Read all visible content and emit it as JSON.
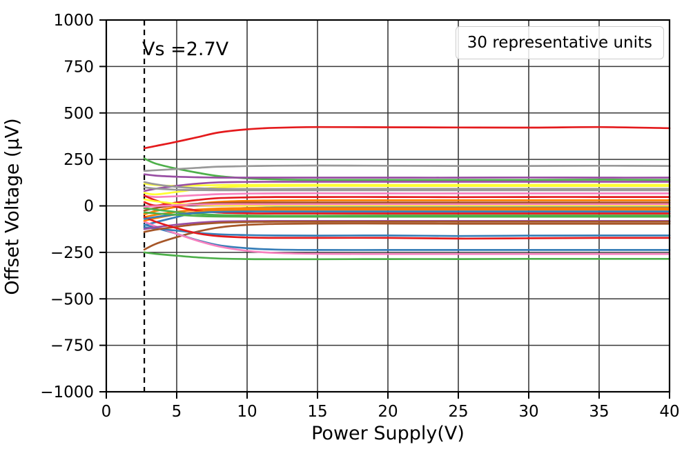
{
  "chart_data": {
    "type": "line",
    "title": "",
    "xlabel": "Power Supply(V)",
    "ylabel": "Offset Voltage (µV)",
    "xlim": [
      0,
      40
    ],
    "ylim": [
      -1000,
      1000
    ],
    "xticks": [
      0,
      5,
      10,
      15,
      20,
      25,
      30,
      35,
      40
    ],
    "yticks": [
      -1000,
      -750,
      -500,
      -250,
      0,
      250,
      500,
      750,
      1000
    ],
    "grid": true,
    "legend_text": "30 representative units",
    "annotation": {
      "text": "Vs =2.7V",
      "x": 2.8,
      "y": 880
    },
    "vline": {
      "x": 2.7,
      "style": "dashed",
      "color": "#000000"
    },
    "x": [
      2.7,
      3.5,
      5,
      6.5,
      8,
      10,
      12,
      15,
      20,
      25,
      30,
      35,
      40
    ],
    "series": [
      {
        "color": "#e41a1c",
        "y": [
          310,
          322,
          345,
          370,
          395,
          412,
          420,
          424,
          423,
          422,
          421,
          424,
          418
        ]
      },
      {
        "color": "#377eb8",
        "y": [
          -104,
          -88,
          -60,
          -34,
          -18,
          -11,
          -9,
          -8,
          -8,
          -9,
          -8,
          -8,
          -8
        ]
      },
      {
        "color": "#4daf4a",
        "y": [
          255,
          228,
          200,
          178,
          160,
          148,
          142,
          140,
          140,
          140,
          140,
          141,
          140
        ]
      },
      {
        "color": "#984ea3",
        "y": [
          170,
          163,
          157,
          154,
          152,
          152,
          152,
          152,
          152,
          152,
          153,
          152,
          152
        ]
      },
      {
        "color": "#ff7f00",
        "y": [
          -45,
          -28,
          -5,
          12,
          22,
          27,
          29,
          30,
          30,
          30,
          30,
          30,
          30
        ]
      },
      {
        "color": "#ffff33",
        "y": [
          120,
          112,
          108,
          110,
          112,
          113,
          114,
          114,
          113,
          113,
          113,
          114,
          113
        ]
      },
      {
        "color": "#a65628",
        "y": [
          -235,
          -205,
          -168,
          -138,
          -116,
          -102,
          -97,
          -95,
          -95,
          -96,
          -96,
          -96,
          -96
        ]
      },
      {
        "color": "#f781bf",
        "y": [
          55,
          48,
          52,
          58,
          63,
          66,
          67,
          68,
          67,
          67,
          67,
          67,
          67
        ]
      },
      {
        "color": "#999999",
        "y": [
          188,
          192,
          198,
          205,
          211,
          214,
          216,
          217,
          216,
          215,
          215,
          216,
          215
        ]
      },
      {
        "color": "#e41a1c",
        "y": [
          20,
          2,
          18,
          32,
          42,
          46,
          48,
          48,
          48,
          47,
          48,
          48,
          48
        ]
      },
      {
        "color": "#377eb8",
        "y": [
          -100,
          -118,
          -150,
          -185,
          -212,
          -228,
          -235,
          -237,
          -237,
          -237,
          -237,
          -237,
          -237
        ]
      },
      {
        "color": "#4daf4a",
        "y": [
          -250,
          -258,
          -268,
          -277,
          -283,
          -286,
          -287,
          -287,
          -286,
          -286,
          -285,
          -285,
          -285
        ]
      },
      {
        "color": "#984ea3",
        "y": [
          80,
          92,
          108,
          120,
          127,
          129,
          130,
          130,
          130,
          130,
          130,
          130,
          130
        ]
      },
      {
        "color": "#ff7f00",
        "y": [
          -60,
          -48,
          -32,
          -20,
          -14,
          -12,
          -12,
          -12,
          -12,
          -12,
          -12,
          -12,
          -12
        ]
      },
      {
        "color": "#ffff33",
        "y": [
          70,
          62,
          75,
          90,
          100,
          105,
          107,
          108,
          107,
          107,
          107,
          107,
          107
        ]
      },
      {
        "color": "#a65628",
        "y": [
          -25,
          -12,
          4,
          12,
          16,
          18,
          18,
          18,
          18,
          18,
          18,
          18,
          18
        ]
      },
      {
        "color": "#f781bf",
        "y": [
          -85,
          -110,
          -150,
          -188,
          -218,
          -242,
          -253,
          -258,
          -259,
          -259,
          -259,
          -259,
          -259
        ]
      },
      {
        "color": "#999999",
        "y": [
          128,
          116,
          102,
          95,
          92,
          91,
          91,
          92,
          92,
          92,
          92,
          92,
          92
        ]
      },
      {
        "color": "#e41a1c",
        "y": [
          55,
          30,
          -5,
          -25,
          -36,
          -40,
          -41,
          -41,
          -41,
          -41,
          -41,
          -41,
          -41
        ]
      },
      {
        "color": "#377eb8",
        "y": [
          -115,
          -122,
          -133,
          -145,
          -153,
          -157,
          -159,
          -160,
          -159,
          -162,
          -160,
          -159,
          -159
        ]
      },
      {
        "color": "#4daf4a",
        "y": [
          -11,
          -20,
          -33,
          -43,
          -49,
          -52,
          -53,
          -53,
          -52,
          -52,
          -52,
          -52,
          -52
        ]
      },
      {
        "color": "#984ea3",
        "y": [
          -125,
          -115,
          -101,
          -90,
          -84,
          -82,
          -81,
          -81,
          -81,
          -81,
          -81,
          -81,
          -81
        ]
      },
      {
        "color": "#ff7f00",
        "y": [
          -80,
          -66,
          -46,
          -32,
          -24,
          -21,
          -20,
          -20,
          -20,
          -20,
          -20,
          -20,
          -20
        ]
      },
      {
        "color": "#ffff33",
        "y": [
          35,
          25,
          12,
          5,
          3,
          2,
          2,
          2,
          2,
          2,
          2,
          2,
          2
        ]
      },
      {
        "color": "#a65628",
        "y": [
          -140,
          -128,
          -112,
          -99,
          -91,
          -87,
          -85,
          -85,
          -85,
          -85,
          -85,
          -85,
          -85
        ]
      },
      {
        "color": "#f781bf",
        "y": [
          -5,
          -1,
          4,
          7,
          9,
          9,
          9,
          9,
          9,
          9,
          9,
          9,
          9
        ]
      },
      {
        "color": "#999999",
        "y": [
          100,
          93,
          87,
          85,
          84,
          84,
          84,
          84,
          84,
          84,
          84,
          84,
          84
        ]
      },
      {
        "color": "#e41a1c",
        "y": [
          -60,
          -85,
          -120,
          -148,
          -163,
          -170,
          -172,
          -172,
          -172,
          -176,
          -174,
          -172,
          -172
        ]
      },
      {
        "color": "#377eb8",
        "y": [
          -70,
          -60,
          -46,
          -37,
          -32,
          -30,
          -30,
          -30,
          -30,
          -30,
          -30,
          -30,
          -30
        ]
      },
      {
        "color": "#4daf4a",
        "y": [
          -35,
          -40,
          -48,
          -54,
          -57,
          -58,
          -58,
          -58,
          -58,
          -58,
          -58,
          -58,
          -58
        ]
      }
    ]
  },
  "style_colors": {
    "grid": "#383838",
    "spine": "#000000",
    "tick_label": "#000000",
    "background": "#ffffff",
    "legend_border": "#cccccc"
  }
}
